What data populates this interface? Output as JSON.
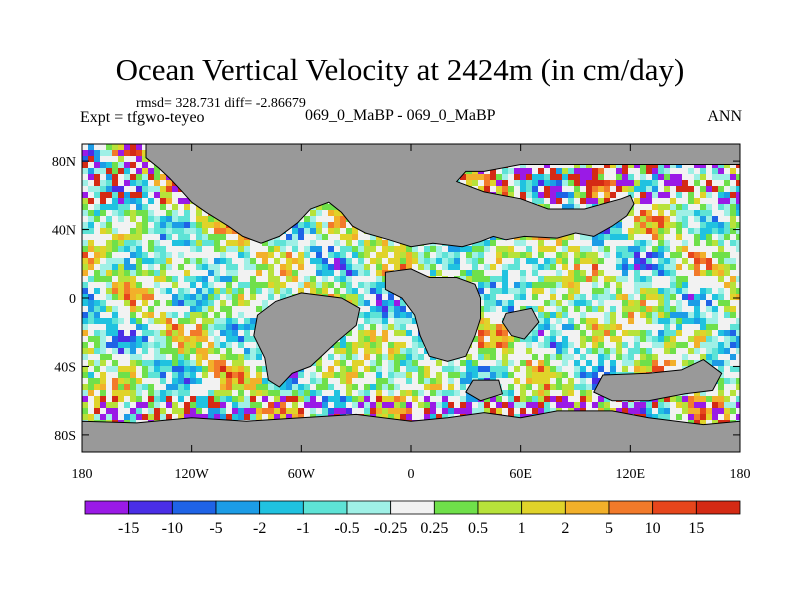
{
  "chart_data": {
    "type": "heatmap",
    "title": "Ocean Vertical Velocity at 2424m (in cm/day)",
    "stats_text": "rmsd= 328.731 diff= -2.86679",
    "expt_text": "Expt = tfgwo-teyeo",
    "case_text": "069_0_MaBP - 069_0_MaBP",
    "season": "ANN",
    "x_ticks": [
      "180",
      "120W",
      "60W",
      "0",
      "60E",
      "120E",
      "180"
    ],
    "x_range": [
      -180,
      180
    ],
    "y_ticks": [
      "80N",
      "40N",
      "0",
      "40S",
      "80S"
    ],
    "y_range": [
      -90,
      90
    ],
    "colorbar": {
      "labels": [
        "-15",
        "-10",
        "-5",
        "-2",
        "-1",
        "-0.5",
        "-0.25",
        "0.25",
        "0.5",
        "1",
        "2",
        "5",
        "10",
        "15"
      ],
      "colors": [
        "#9a1ae6",
        "#4a2ee6",
        "#1f63e6",
        "#1c9ce6",
        "#20c2e0",
        "#5ee3d6",
        "#9ff0e6",
        "#f2f2f2",
        "#6fe04a",
        "#b7e23a",
        "#e0d32a",
        "#f2b02a",
        "#f27a2a",
        "#e6461c",
        "#d42a14"
      ]
    },
    "land_color": "#999999"
  }
}
